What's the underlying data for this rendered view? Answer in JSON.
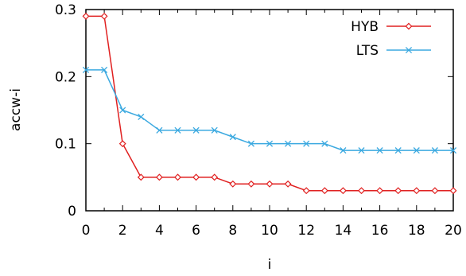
{
  "chart_data": {
    "type": "line",
    "xlabel": "i",
    "ylabel": "accw-i",
    "xlim": [
      0,
      20
    ],
    "ylim": [
      0,
      0.3
    ],
    "xticks": [
      0,
      2,
      4,
      6,
      8,
      10,
      12,
      14,
      16,
      18,
      20
    ],
    "xtick_labels": [
      "0",
      "2",
      "4",
      "6",
      "8",
      "10",
      "12",
      "14",
      "16",
      "18",
      "20"
    ],
    "yticks": [
      0,
      0.1,
      0.2,
      0.3
    ],
    "ytick_labels": [
      "0",
      "0.1",
      "0.2",
      "0.3"
    ],
    "grid": false,
    "legend_position": "top-right",
    "x": [
      0,
      1,
      2,
      3,
      4,
      5,
      6,
      7,
      8,
      9,
      10,
      11,
      12,
      13,
      14,
      15,
      16,
      17,
      18,
      19,
      20
    ],
    "series": [
      {
        "name": "HYB",
        "color": "#e02020",
        "marker": "diamond",
        "values": [
          0.29,
          0.29,
          0.1,
          0.05,
          0.05,
          0.05,
          0.05,
          0.05,
          0.04,
          0.04,
          0.04,
          0.04,
          0.03,
          0.03,
          0.03,
          0.03,
          0.03,
          0.03,
          0.03,
          0.03,
          0.03
        ]
      },
      {
        "name": "LTS",
        "color": "#3ba9e0",
        "marker": "x",
        "values": [
          0.21,
          0.21,
          0.15,
          0.14,
          0.12,
          0.12,
          0.12,
          0.12,
          0.11,
          0.1,
          0.1,
          0.1,
          0.1,
          0.1,
          0.09,
          0.09,
          0.09,
          0.09,
          0.09,
          0.09,
          0.09
        ]
      }
    ]
  }
}
